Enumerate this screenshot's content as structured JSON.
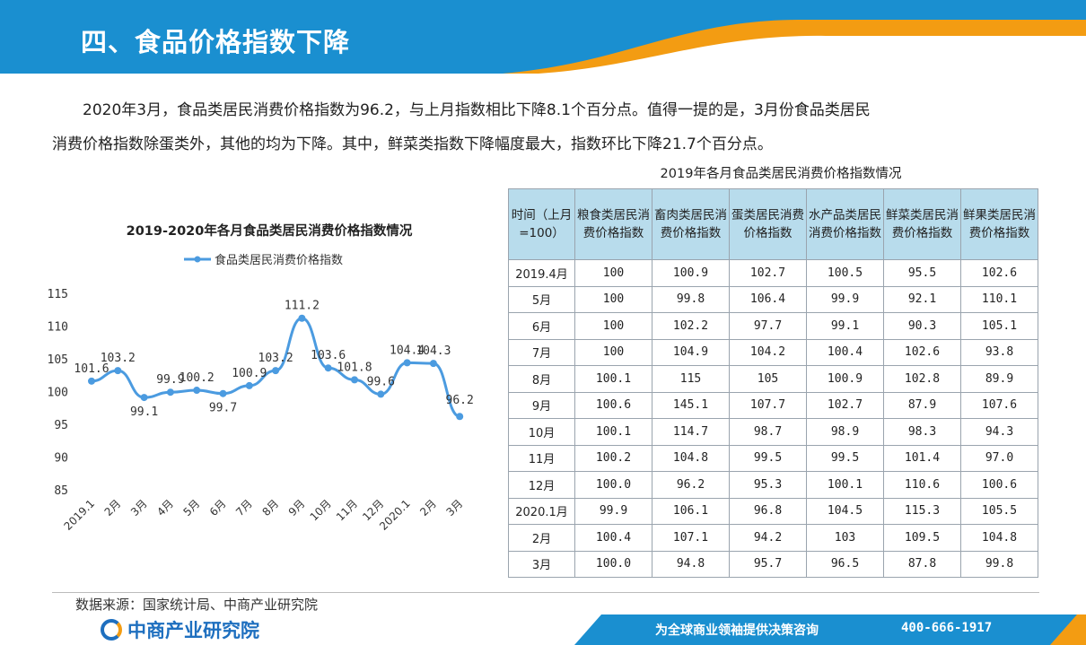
{
  "header": {
    "title": "四、食品价格指数下降"
  },
  "paragraph": [
    "2020年3月，食品类居民消费价格指数为96.2，与上月指数相比下降8.1个百分点。值得一提的是，3月份食品类居民",
    "消费价格指数除蛋类外，其他的均为下降。其中，鲜菜类指数下降幅度最大，指数环比下降21.7个百分点。"
  ],
  "colors": {
    "header_blue": "#1a8fd0",
    "header_orange": "#f39c12",
    "line_blue": "#4b9be0",
    "table_header": "#b8dcec"
  },
  "chart_data": {
    "type": "line",
    "title": "2019-2020年各月食品类居民消费价格指数情况",
    "categories": [
      "2019.1",
      "2月",
      "3月",
      "4月",
      "5月",
      "6月",
      "7月",
      "8月",
      "9月",
      "10月",
      "11月",
      "12月",
      "2020.1",
      "2月",
      "3月"
    ],
    "series": [
      {
        "name": "食品类居民消费价格指数",
        "values": [
          101.6,
          103.2,
          99.1,
          99.9,
          100.2,
          99.7,
          100.9,
          103.2,
          111.2,
          103.6,
          101.8,
          99.6,
          104.4,
          104.3,
          96.2
        ]
      }
    ],
    "data_labels": [
      "101.6",
      "103.2",
      "99.1",
      "99.9",
      "100.2",
      "99.7",
      "100.9",
      "103.2",
      "111.2",
      "103.6",
      "101.8",
      "99.6",
      "104.4",
      "104.3",
      "96.2"
    ],
    "yticks": [
      "115",
      "110",
      "105",
      "100",
      "95",
      "90",
      "85"
    ],
    "ylim": [
      85,
      115
    ],
    "legend_position": "top",
    "grid": false
  },
  "table": {
    "title": "2019年各月食品类居民消费价格指数情况",
    "headers": [
      "时间（上月=100）",
      "粮食类居民消费价格指数",
      "畜肉类居民消费价格指数",
      "蛋类居民消费价格指数",
      "水产品类居民消费价格指数",
      "鲜菜类居民消费价格指数",
      "鲜果类居民消费价格指数"
    ],
    "rows": [
      [
        "2019.4月",
        "100",
        "100.9",
        "102.7",
        "100.5",
        "95.5",
        "102.6"
      ],
      [
        "5月",
        "100",
        "99.8",
        "106.4",
        "99.9",
        "92.1",
        "110.1"
      ],
      [
        "6月",
        "100",
        "102.2",
        "97.7",
        "99.1",
        "90.3",
        "105.1"
      ],
      [
        "7月",
        "100",
        "104.9",
        "104.2",
        "100.4",
        "102.6",
        "93.8"
      ],
      [
        "8月",
        "100.1",
        "115",
        "105",
        "100.9",
        "102.8",
        "89.9"
      ],
      [
        "9月",
        "100.6",
        "145.1",
        "107.7",
        "102.7",
        "87.9",
        "107.6"
      ],
      [
        "10月",
        "100.1",
        "114.7",
        "98.7",
        "98.9",
        "98.3",
        "94.3"
      ],
      [
        "11月",
        "100.2",
        "104.8",
        "99.5",
        "99.5",
        "101.4",
        "97.0"
      ],
      [
        "12月",
        "100.0",
        "96.2",
        "95.3",
        "100.1",
        "110.6",
        "100.6"
      ],
      [
        "2020.1月",
        "99.9",
        "106.1",
        "96.8",
        "104.5",
        "115.3",
        "105.5"
      ],
      [
        "2月",
        "100.4",
        "107.1",
        "94.2",
        "103",
        "109.5",
        "104.8"
      ],
      [
        "3月",
        "100.0",
        "94.8",
        "95.7",
        "96.5",
        "87.8",
        "99.8"
      ]
    ]
  },
  "footer": {
    "source": "数据来源：国家统计局、中商产业研究院",
    "logo_text": "中商产业研究院",
    "slogan": "为全球商业领袖提供决策咨询",
    "phone": "400-666-1917"
  }
}
